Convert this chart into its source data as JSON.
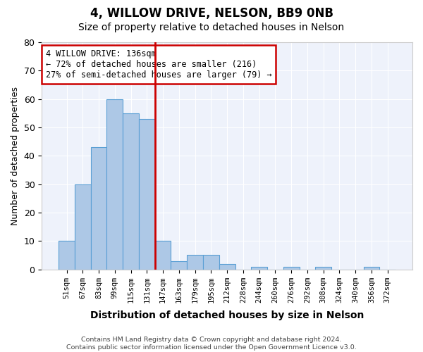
{
  "title1": "4, WILLOW DRIVE, NELSON, BB9 0NB",
  "title2": "Size of property relative to detached houses in Nelson",
  "xlabel": "Distribution of detached houses by size in Nelson",
  "ylabel": "Number of detached properties",
  "bins": [
    "51sqm",
    "67sqm",
    "83sqm",
    "99sqm",
    "115sqm",
    "131sqm",
    "147sqm",
    "163sqm",
    "179sqm",
    "195sqm",
    "212sqm",
    "228sqm",
    "244sqm",
    "260sqm",
    "276sqm",
    "292sqm",
    "308sqm",
    "324sqm",
    "340sqm",
    "356sqm",
    "372sqm"
  ],
  "values": [
    10,
    30,
    43,
    60,
    55,
    53,
    10,
    3,
    5,
    5,
    2,
    0,
    1,
    0,
    1,
    0,
    1,
    0,
    0,
    1,
    0
  ],
  "ylim": [
    0,
    80
  ],
  "property_line_x": 5.5,
  "bar_color": "#adc8e6",
  "bar_edge_color": "#5a9fd4",
  "vline_color": "#cc0000",
  "annotation_text": "4 WILLOW DRIVE: 136sqm\n← 72% of detached houses are smaller (216)\n27% of semi-detached houses are larger (79) →",
  "annotation_box_edge": "#cc0000",
  "footer": "Contains HM Land Registry data © Crown copyright and database right 2024.\nContains public sector information licensed under the Open Government Licence v3.0.",
  "bg_color": "#eef2fb",
  "title1_fontsize": 12,
  "title2_fontsize": 10
}
